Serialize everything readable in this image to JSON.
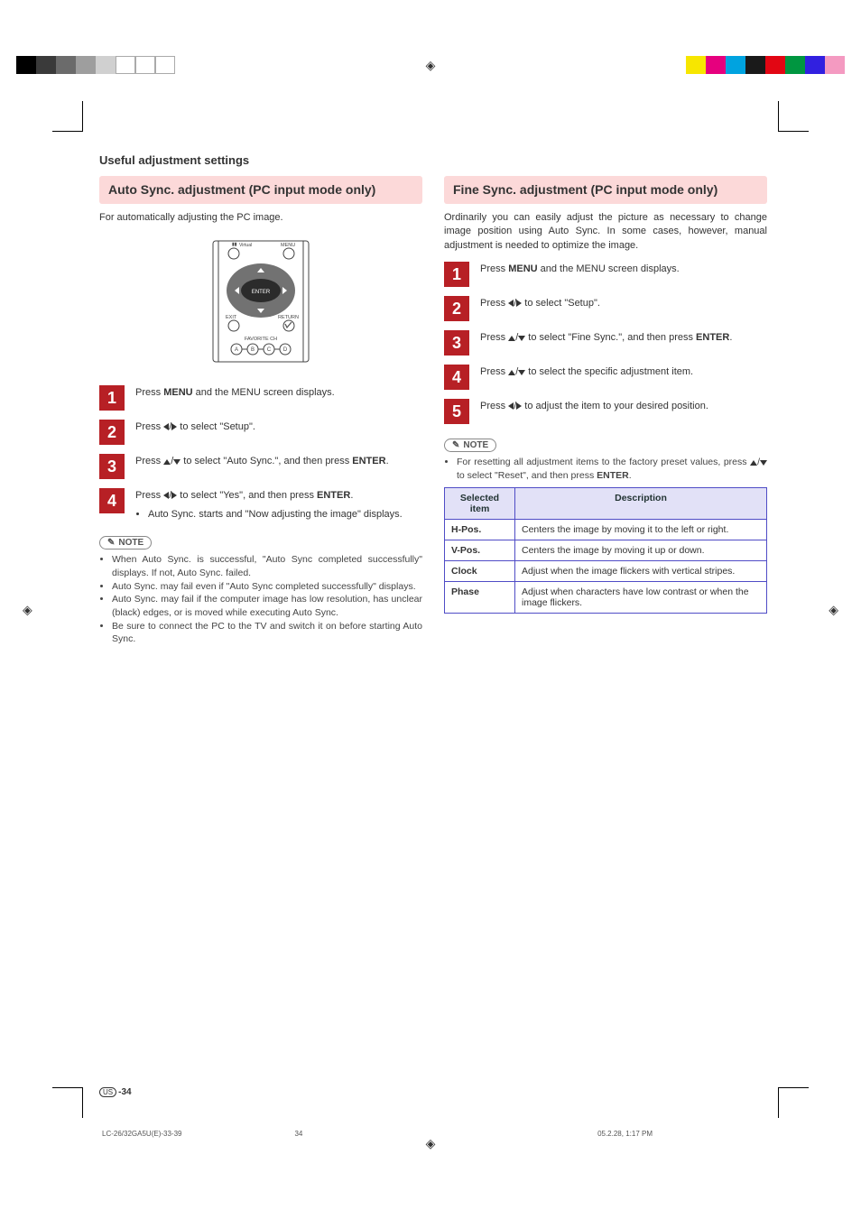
{
  "printer_bars_left": [
    "#000000",
    "#3a3a3a",
    "#6b6b6b",
    "#9e9e9e",
    "#d0d0d0",
    "#ffffff",
    "#ffffff",
    "#ffffff"
  ],
  "printer_bars_right": [
    "#f7e600",
    "#e6007e",
    "#00a3e0",
    "#1a1a1a",
    "#e20613",
    "#009640",
    "#3120e0",
    "#f49ac1"
  ],
  "page_title": "Useful adjustment settings",
  "left": {
    "heading": "Auto Sync. adjustment (PC input mode only)",
    "intro": "For automatically adjusting the PC image.",
    "steps": [
      {
        "n": "1",
        "body": "Press <b>MENU</b> and the MENU screen displays."
      },
      {
        "n": "2",
        "body": "Press <span class='tri tri-l'></span>/<span class='tri tri-r'></span> to select \"Setup\"."
      },
      {
        "n": "3",
        "body": "Press <span class='tri tri-u'></span>/<span class='tri tri-d'></span> to select \"Auto Sync.\", and then press <b>ENTER</b>."
      },
      {
        "n": "4",
        "body": "Press <span class='tri tri-l'></span>/<span class='tri tri-r'></span> to select \"Yes\", and then press <b>ENTER</b>.",
        "bullets": [
          "Auto Sync. starts and \"Now adjusting the image\" displays."
        ]
      }
    ],
    "note_label": "NOTE",
    "notes": [
      "When Auto Sync. is successful, \"Auto Sync completed successfully\" displays. If not, Auto Sync. failed.",
      "Auto Sync. may fail even if \"Auto Sync completed successfully\" displays.",
      "Auto Sync. may fail if the computer image has low resolution, has unclear (black) edges, or is moved while executing Auto Sync.",
      "Be sure to connect the PC to the TV and switch it on before starting Auto Sync."
    ]
  },
  "right": {
    "heading": "Fine Sync. adjustment (PC input mode only)",
    "intro": "Ordinarily you can easily adjust the picture as necessary to change image position using Auto Sync. In some cases, however, manual adjustment is needed to optimize the image.",
    "steps": [
      {
        "n": "1",
        "body": "Press <b>MENU</b> and the MENU screen displays."
      },
      {
        "n": "2",
        "body": "Press <span class='tri tri-l'></span>/<span class='tri tri-r'></span> to select \"Setup\"."
      },
      {
        "n": "3",
        "body": "Press <span class='tri tri-u'></span>/<span class='tri tri-d'></span> to select \"Fine Sync.\", and then press <b>ENTER</b>."
      },
      {
        "n": "4",
        "body": "Press <span class='tri tri-u'></span>/<span class='tri tri-d'></span> to select the specific adjustment item."
      },
      {
        "n": "5",
        "body": "Press <span class='tri tri-l'></span>/<span class='tri tri-r'></span> to adjust the item to your desired position."
      }
    ],
    "note_label": "NOTE",
    "notes": [
      "For resetting all adjustment items to the factory preset values, press <span class='tri tri-u'></span>/<span class='tri tri-d'></span> to select \"Reset\", and then press <b>ENTER</b>."
    ],
    "table": {
      "headers": [
        "Selected item",
        "Description"
      ],
      "rows": [
        [
          "H-Pos.",
          "Centers the image by moving it to the left or right."
        ],
        [
          "V-Pos.",
          "Centers the image by moving it up or down."
        ],
        [
          "Clock",
          "Adjust when the image flickers with vertical stripes."
        ],
        [
          "Phase",
          "Adjust when characters have low contrast or when the image flickers."
        ]
      ]
    }
  },
  "footer": {
    "region": "US",
    "page": "-34",
    "file": "LC-26/32GA5U(E)-33-39",
    "sheet": "34",
    "ts": "05.2.28, 1:17 PM"
  },
  "remote": {
    "virtual": "Virtual",
    "menu": "MENU",
    "exit": "EXIT",
    "return": "RETURN",
    "enter": "ENTER",
    "fav": "FAVORITE CH",
    "a": "A",
    "b": "B",
    "c": "C",
    "d": "D"
  }
}
